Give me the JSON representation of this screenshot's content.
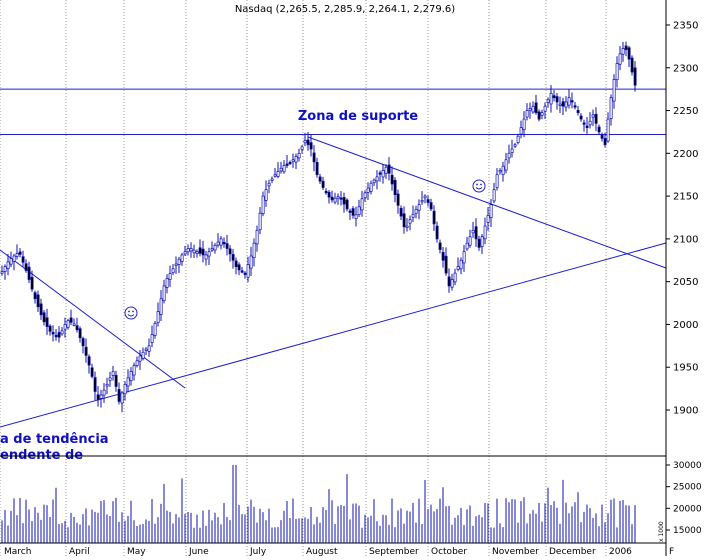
{
  "chart_data": {
    "type": "candlestick",
    "title": "Nasdaq (2,265.5, 2,285.9, 2,264.1, 2,279.6)",
    "price_axis": {
      "ticks": [
        1900,
        1950,
        2000,
        2050,
        2100,
        2150,
        2200,
        2250,
        2300,
        2350
      ],
      "tick_labels": [
        "1900",
        "1950",
        "2000",
        "2050",
        "2100",
        "2150",
        "2200",
        "2250",
        "2300",
        "2350"
      ],
      "range": [
        1870,
        2360
      ]
    },
    "volume_axis": {
      "ticks": [
        15000,
        20000,
        25000,
        30000
      ],
      "tick_labels": [
        "15000",
        "20000",
        "25000",
        "30000"
      ],
      "unit_label": "x 1000",
      "range": [
        0,
        30000
      ]
    },
    "x_axis": {
      "month_labels": [
        "March",
        "April",
        "May",
        "June",
        "July",
        "August",
        "September",
        "October",
        "November",
        "December",
        "2006",
        "F"
      ]
    },
    "annotations": {
      "support_label": "Zona de suporte",
      "trend_label_line1": "a de tendência",
      "trend_label_line2": "endente de"
    },
    "support_levels": [
      2275,
      2222
    ],
    "ohlc_summary": {
      "open": 2265.5,
      "high": 2285.9,
      "low": 2264.1,
      "close": 2279.6
    }
  },
  "colors": {
    "line": "#1f1fd0",
    "candle": "#1010b0",
    "grid": "#9a9a9a",
    "text_blue": "#1010c0"
  }
}
